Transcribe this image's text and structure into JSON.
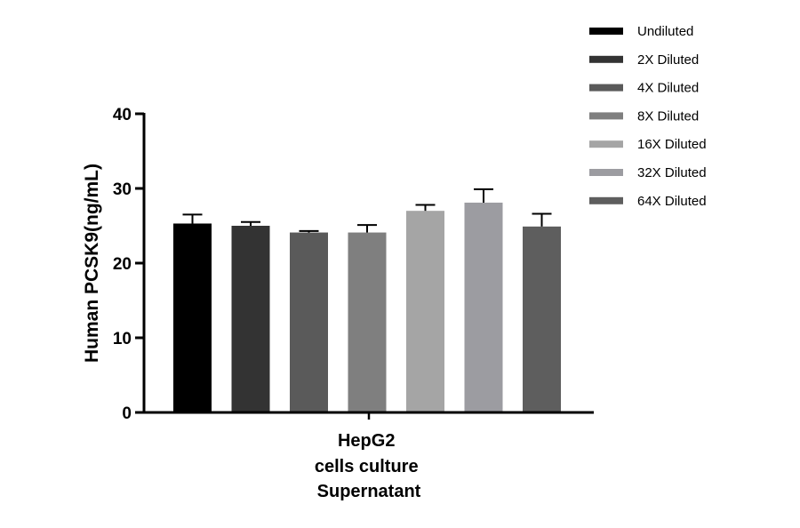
{
  "chart_data": {
    "type": "bar",
    "title": "",
    "xlabel": "",
    "ylabel": "Human PCSK9(ng/mL)",
    "categories": [
      "HepG2\ncells culture\nSupernatant"
    ],
    "category_lines": [
      "HepG2",
      "cells culture",
      "Supernatant"
    ],
    "ylim": [
      0,
      40
    ],
    "yticks": [
      0,
      10,
      20,
      30,
      40
    ],
    "grid": false,
    "legend_position": "top-right",
    "error_bars": true,
    "series": [
      {
        "name": "Undiluted",
        "values": [
          25.3
        ],
        "error": [
          1.2
        ],
        "color": "#000000"
      },
      {
        "name": "2X Diluted",
        "values": [
          25.0
        ],
        "error": [
          0.5
        ],
        "color": "#333333"
      },
      {
        "name": "4X Diluted",
        "values": [
          24.1
        ],
        "error": [
          0.2
        ],
        "color": "#5a5a5a"
      },
      {
        "name": "8X Diluted",
        "values": [
          24.1
        ],
        "error": [
          1.0
        ],
        "color": "#7f7f7f"
      },
      {
        "name": "16X Diluted",
        "values": [
          27.0
        ],
        "error": [
          0.8
        ],
        "color": "#a5a5a5"
      },
      {
        "name": "32X Diluted",
        "values": [
          28.1
        ],
        "error": [
          1.8
        ],
        "color": "#9c9ca1"
      },
      {
        "name": "64X Diluted",
        "values": [
          24.9
        ],
        "error": [
          1.7
        ],
        "color": "#5e5e5e"
      }
    ]
  }
}
